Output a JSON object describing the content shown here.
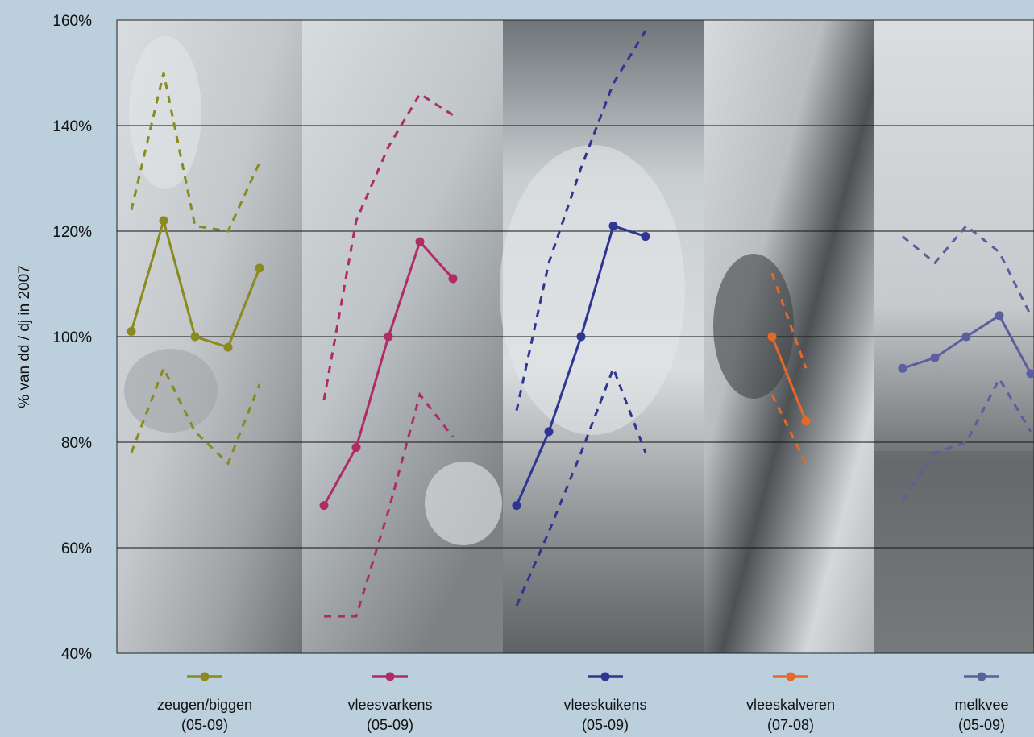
{
  "chart_data": {
    "type": "line",
    "ylabel": "% van dd / dj in 2007",
    "ylim": [
      40,
      160
    ],
    "y_ticks": [
      "40%",
      "60%",
      "80%",
      "100%",
      "120%",
      "140%",
      "160%"
    ],
    "y_tick_values": [
      40,
      60,
      80,
      100,
      120,
      140,
      160
    ],
    "grid": true,
    "legend_placement": "bottom",
    "series": [
      {
        "name": "zeugen/biggen",
        "range": "(05-09)",
        "color": "#8a8a1e",
        "values": [
          101,
          122,
          100,
          98,
          113
        ],
        "upper": [
          124,
          150,
          121,
          120,
          133
        ],
        "lower": [
          78,
          94,
          82,
          76,
          91
        ]
      },
      {
        "name": "vleesvarkens",
        "range": "(05-09)",
        "color": "#b02c66",
        "values": [
          68,
          79,
          100,
          118,
          111
        ],
        "upper": [
          88,
          122,
          136,
          146,
          142
        ],
        "lower": [
          47,
          47,
          67,
          89,
          81
        ]
      },
      {
        "name": "vleeskuikens",
        "range": "(05-09)",
        "color": "#2f3592",
        "values": [
          68,
          82,
          100,
          121,
          119
        ],
        "upper": [
          86,
          114,
          132,
          148,
          158
        ],
        "lower": [
          49,
          63,
          78,
          94,
          78
        ]
      },
      {
        "name": "vleeskalveren",
        "range": "(07-08)",
        "color": "#e8682a",
        "values": [
          100,
          84
        ],
        "upper": [
          112,
          94
        ],
        "lower": [
          89,
          76
        ]
      },
      {
        "name": "melkvee",
        "range": "(05-09)",
        "color": "#5c5f9e",
        "values": [
          94,
          96,
          100,
          104,
          93
        ],
        "upper": [
          119,
          114,
          121,
          116,
          104
        ],
        "lower": [
          69,
          78,
          80,
          92,
          82
        ]
      }
    ]
  }
}
